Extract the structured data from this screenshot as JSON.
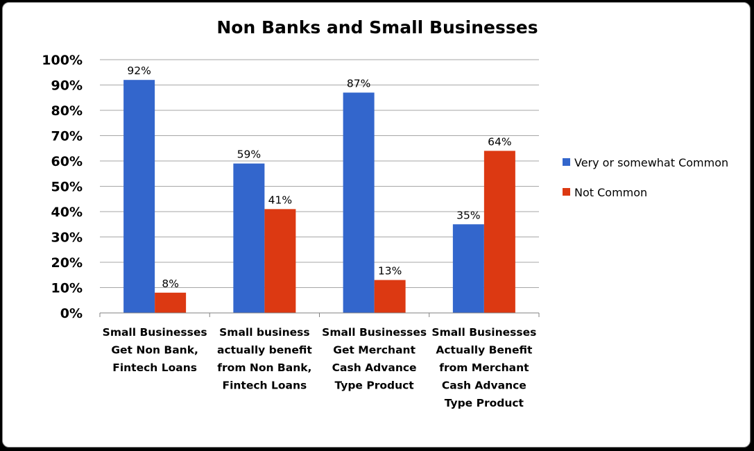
{
  "chart_data": {
    "type": "bar",
    "title": "Non Banks and Small Businesses",
    "categories": [
      [
        "Small Businesses",
        "Get Non Bank,",
        "Fintech Loans"
      ],
      [
        "Small business",
        "actually benefit",
        "from Non Bank,",
        "Fintech Loans"
      ],
      [
        "Small Businesses",
        "Get Merchant",
        "Cash Advance",
        "Type Product"
      ],
      [
        "Small Businesses",
        "Actually Benefit",
        "from Merchant",
        "Cash Advance",
        "Type Product"
      ]
    ],
    "series": [
      {
        "name": "Very or somewhat Common",
        "color": "#3366CC",
        "values": [
          92,
          59,
          87,
          35
        ]
      },
      {
        "name": "Not Common",
        "color": "#DC3912",
        "values": [
          8,
          41,
          13,
          64
        ]
      }
    ],
    "data_labels": [
      [
        "92%",
        "59%",
        "87%",
        "35%"
      ],
      [
        "8%",
        "41%",
        "13%",
        "64%"
      ]
    ],
    "yticks": [
      "0%",
      "10%",
      "20%",
      "30%",
      "40%",
      "50%",
      "60%",
      "70%",
      "80%",
      "90%",
      "100%"
    ],
    "ylim": [
      0,
      100
    ],
    "xlabel": "",
    "ylabel": "",
    "grid": true,
    "legend_position": "right"
  }
}
